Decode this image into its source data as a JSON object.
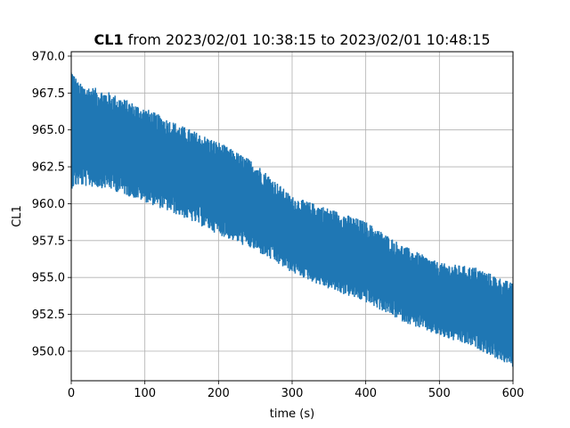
{
  "chart_data": {
    "type": "line",
    "title": {
      "bold_part": "CL1",
      "rest": " from 2023/02/01 10:38:15 to 2023/02/01 10:48:15"
    },
    "xlabel": "time (s)",
    "ylabel": "CL1",
    "xlim": [
      0,
      600
    ],
    "ylim": [
      948.0,
      970.3
    ],
    "x_ticks": [
      0,
      100,
      200,
      300,
      400,
      500,
      600
    ],
    "x_tick_labels": [
      "0",
      "100",
      "200",
      "300",
      "400",
      "500",
      "600"
    ],
    "y_ticks": [
      950.0,
      952.5,
      955.0,
      957.5,
      960.0,
      962.5,
      965.0,
      967.5,
      970.0
    ],
    "y_tick_labels": [
      "950.0",
      "952.5",
      "955.0",
      "957.5",
      "960.0",
      "962.5",
      "965.0",
      "967.5",
      "970.0"
    ],
    "grid": true,
    "series": [
      {
        "color": "#1f77b4",
        "envelope": {
          "x": [
            0,
            10,
            50,
            100,
            150,
            200,
            250,
            300,
            350,
            400,
            450,
            500,
            550,
            600
          ],
          "upper": [
            969.3,
            968.2,
            967.6,
            966.5,
            965.3,
            964.2,
            962.8,
            960.5,
            959.7,
            958.8,
            957.2,
            956.0,
            955.7,
            954.6
          ],
          "lower": [
            961.0,
            961.2,
            961.0,
            960.1,
            959.1,
            957.9,
            956.8,
            955.3,
            954.2,
            953.3,
            952.0,
            951.0,
            950.2,
            948.9
          ]
        }
      }
    ]
  }
}
